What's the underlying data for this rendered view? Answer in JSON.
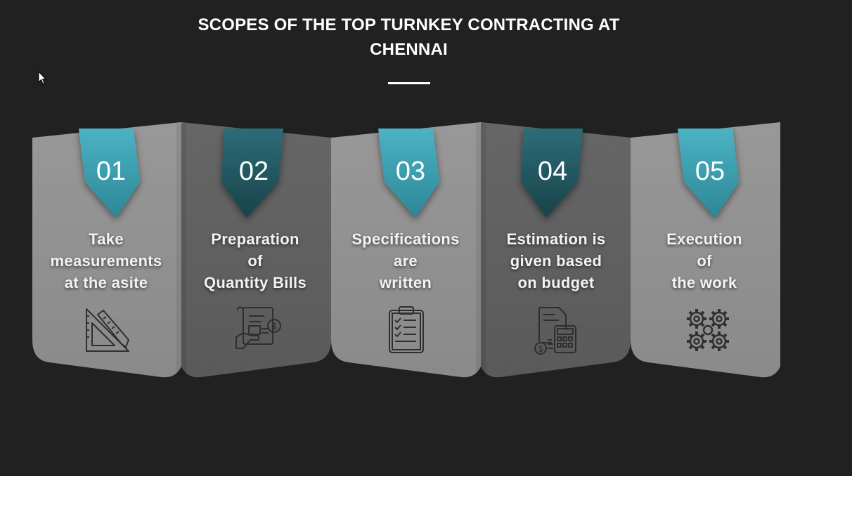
{
  "section": {
    "title_line1": "SCOPES OF THE TOP TURNKEY CONTRACTING AT",
    "title_line2": "CHENNAI"
  },
  "steps": [
    {
      "number": "01",
      "lines": [
        "Take",
        "measurements",
        "at the asite"
      ],
      "icon": "set-square-ruler-icon"
    },
    {
      "number": "02",
      "lines": [
        "Preparation",
        "of",
        "Quantity Bills"
      ],
      "icon": "invoice-bill-icon"
    },
    {
      "number": "03",
      "lines": [
        "Specifications",
        "are",
        "written"
      ],
      "icon": "clipboard-checklist-icon"
    },
    {
      "number": "04",
      "lines": [
        "Estimation is",
        "given based",
        "on budget"
      ],
      "icon": "calculator-document-icon"
    },
    {
      "number": "05",
      "lines": [
        "Execution",
        "of",
        "the work"
      ],
      "icon": "gears-icon"
    }
  ],
  "colors": {
    "background": "#212121",
    "panel_light": "#8d8d8d",
    "panel_dark": "#5e5e5e",
    "ribbon_light": "#3b9fb0",
    "ribbon_dark": "#235a66"
  }
}
